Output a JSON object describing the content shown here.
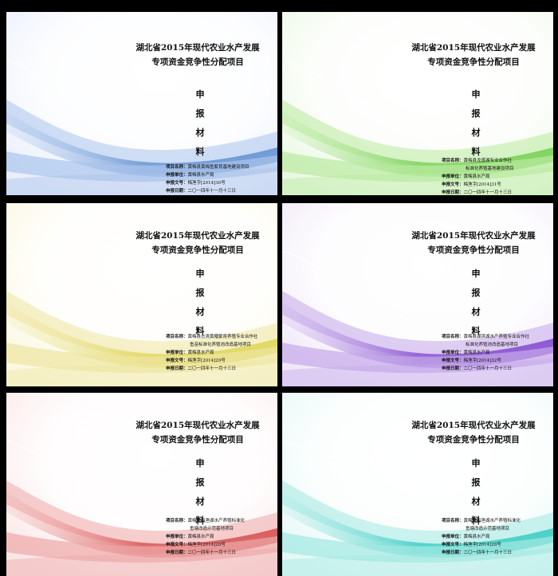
{
  "covers": [
    {
      "colors": {
        "bg": "#e9eefb",
        "wave": "#6d97d4",
        "wave2": "#a9c4ec"
      },
      "title_line1": "湖北省2015年现代农业水产发展",
      "title_line2": "专项资金竞争性分配项目",
      "sb": [
        "申",
        "报",
        "材",
        "料"
      ],
      "info": {
        "name_label": "项目名称：",
        "name_value": "黄梅县黄梅鱼繁育基地建设项目",
        "name_value2": "",
        "unit_label": "申报单位：",
        "unit_value": "黄梅县水产局",
        "doc_label": "申报文号：",
        "doc_value": "梅渔字[2014]30号",
        "date_label": "申报日期：",
        "date_value": "二〇一四年十一月十三日"
      }
    },
    {
      "colors": {
        "bg": "#eaf8e2",
        "wave": "#7ed35a",
        "wave2": "#b9ea9f"
      },
      "title_line1": "湖北省2015年现代农业水产发展",
      "title_line2": "专项资金竞争性分配项目",
      "sb": [
        "申",
        "报",
        "材",
        "料"
      ],
      "info": {
        "name_label": "项目名称：",
        "name_value": "黄梅县龙感湖专业合作社",
        "name_value2": "标准化养殖基地建设项目",
        "unit_label": "申报单位：",
        "unit_value": "黄梅县水产局",
        "doc_label": "申报文号：",
        "doc_value": "梅渔字[2014]31号",
        "date_label": "申报日期：",
        "date_value": "二〇一四年十一月十三日"
      }
    },
    {
      "colors": {
        "bg": "#fbf7e0",
        "wave": "#e0d860",
        "wave2": "#eee6a0"
      },
      "title_line1": "湖北省2015年现代农业水产发展",
      "title_line2": "专项资金竞争性分配项目",
      "sb": [
        "申",
        "报",
        "材",
        "料"
      ],
      "info": {
        "name_label": "项目名称：",
        "name_value": "黄梅县志清黄鳝繁育养殖专业合作社",
        "name_value2": "鱼苗标准化养殖池改造基地项目",
        "unit_label": "申报单位：",
        "unit_value": "黄梅县水产局",
        "doc_label": "申报文号：",
        "doc_value": "梅渔字[2014]29号",
        "date_label": "申报日期：",
        "date_value": "二〇一四年十一月十三日"
      }
    },
    {
      "colors": {
        "bg": "#efe7f7",
        "wave": "#8a55d0",
        "wave2": "#c5a8ea"
      },
      "title_line1": "湖北省2015年现代农业水产发展",
      "title_line2": "专项资金竞争性分配项目",
      "sb": [
        "申",
        "报",
        "材",
        "料"
      ],
      "info": {
        "name_label": "项目名称：",
        "name_value": "黄梅县湖滨湖水产养殖专业合作社",
        "name_value2": "标准化养殖池改造基地项目",
        "unit_label": "申报单位：",
        "unit_value": "黄梅县水产局",
        "doc_label": "申报文号：",
        "doc_value": "梅渔字[2014]32号",
        "date_label": "申报日期：",
        "date_value": "二〇一四年十一月十三日"
      }
    },
    {
      "colors": {
        "bg": "#fbe6e6",
        "wave": "#d85a5a",
        "wave2": "#eea8a8"
      },
      "title_line1": "湖北省2015年现代农业水产发展",
      "title_line2": "专项资金竞争性分配项目",
      "sb": [
        "申",
        "报",
        "材",
        "料"
      ],
      "info": {
        "name_label": "项目名称：",
        "name_value": "黄梅县稻渔湖水产养殖标准化",
        "name_value2": "鱼塘改造示范基地项目",
        "unit_label": "申报单位：",
        "unit_value": "黄梅县水产局",
        "doc_label": "申报文号：",
        "doc_value": "梅渔字[2014]28号",
        "date_label": "申报日期：",
        "date_value": "二〇一四年十一月十三日"
      }
    },
    {
      "colors": {
        "bg": "#e4f8f6",
        "wave": "#45cfc6",
        "wave2": "#a3e8e2"
      },
      "title_line1": "湖北省2015年现代农业水产发展",
      "title_line2": "专项资金竞争性分配项目",
      "sb": [
        "申",
        "报",
        "材",
        "料"
      ],
      "info": {
        "name_label": "项目名称：",
        "name_value": "黄梅县稻渔湖水产养殖标准化",
        "name_value2": "鱼塘改造示范基地项目",
        "unit_label": "申报单位：",
        "unit_value": "黄梅县水产局",
        "doc_label": "申报文号：",
        "doc_value": "梅渔字[2014]28号",
        "date_label": "申报日期：",
        "date_value": "二〇一四年十一月十三日"
      }
    }
  ]
}
